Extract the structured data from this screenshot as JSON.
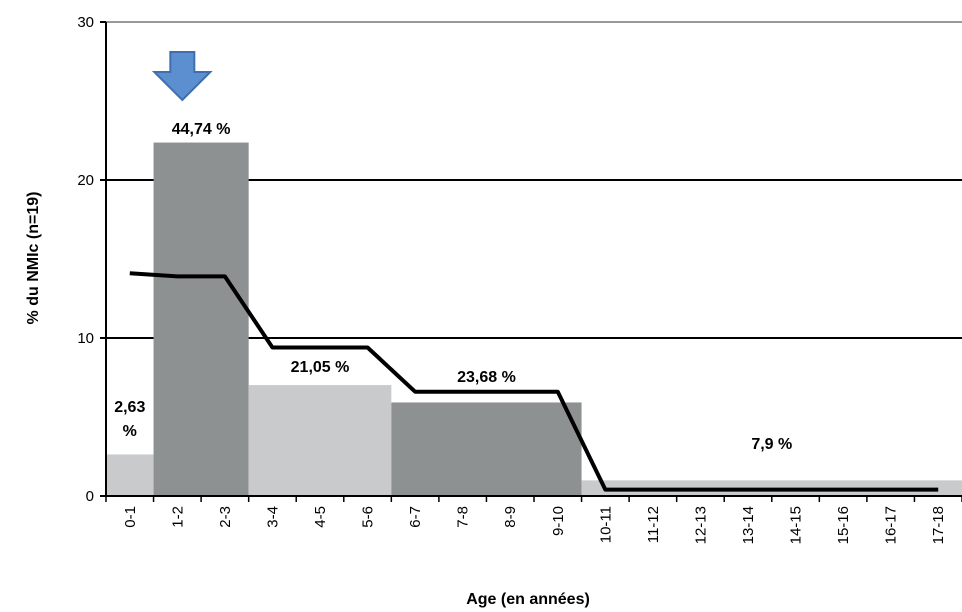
{
  "chart_data": {
    "type": "bar",
    "xlabel": "Age (en années)",
    "ylabel": "% du NMIc (n=19)",
    "ylim": [
      0,
      30
    ],
    "yticks": [
      0,
      10,
      20,
      30
    ],
    "grid": true,
    "categories": [
      "0-1",
      "1-2",
      "2-3",
      "3-4",
      "4-5",
      "5-6",
      "6-7",
      "7-8",
      "8-9",
      "9-10",
      "10-11",
      "11-12",
      "12-13",
      "13-14",
      "14-15",
      "15-16",
      "16-17",
      "17-18"
    ],
    "bar_groups": [
      {
        "from": 0,
        "to": 1,
        "value": 2.63,
        "label_lines": [
          "2,63",
          "%"
        ],
        "color": "#c8cacb"
      },
      {
        "from": 1,
        "to": 3,
        "value": 22.37,
        "label_lines": [
          "44,74 %"
        ],
        "color": "#8e9192"
      },
      {
        "from": 3,
        "to": 6,
        "value": 7.02,
        "label_lines": [
          "21,05 %"
        ],
        "color": "#c8cacb"
      },
      {
        "from": 6,
        "to": 10,
        "value": 5.92,
        "label_lines": [
          "23,68 %"
        ],
        "color": "#8e9192"
      },
      {
        "from": 10,
        "to": 18,
        "value": 0.99,
        "label_lines": [
          "7,9 %"
        ],
        "color": "#c8cacb"
      }
    ],
    "line": {
      "color": "#000000",
      "points": [
        [
          0,
          14.1
        ],
        [
          1,
          13.9
        ],
        [
          2,
          13.9
        ],
        [
          3,
          9.4
        ],
        [
          4,
          9.4
        ],
        [
          5,
          9.4
        ],
        [
          6,
          6.6
        ],
        [
          7,
          6.6
        ],
        [
          8,
          6.6
        ],
        [
          9,
          6.6
        ],
        [
          10,
          0.4
        ],
        [
          11,
          0.4
        ],
        [
          12,
          0.4
        ],
        [
          13,
          0.4
        ],
        [
          14,
          0.4
        ],
        [
          15,
          0.4
        ],
        [
          16,
          0.4
        ],
        [
          17,
          0.4
        ]
      ]
    },
    "marker": {
      "icon": "down-arrow-icon",
      "category_position": 1,
      "color": "#5b8fd0"
    }
  }
}
